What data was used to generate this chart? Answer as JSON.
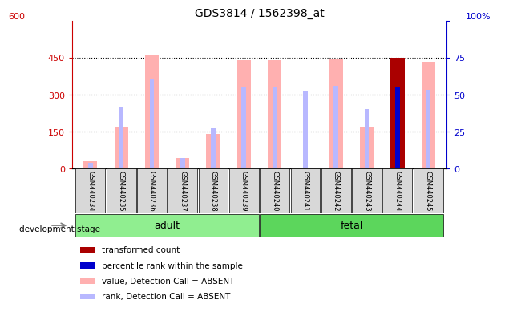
{
  "title": "GDS3814 / 1562398_at",
  "samples": [
    "GSM440234",
    "GSM440235",
    "GSM440236",
    "GSM440237",
    "GSM440238",
    "GSM440239",
    "GSM440240",
    "GSM440241",
    "GSM440242",
    "GSM440243",
    "GSM440244",
    "GSM440245"
  ],
  "pink_values": [
    30,
    170,
    460,
    42,
    140,
    438,
    440,
    0,
    442,
    170,
    0,
    432
  ],
  "pink_visible": [
    true,
    true,
    true,
    true,
    true,
    true,
    true,
    false,
    true,
    true,
    false,
    true
  ],
  "blue_rank_pct": [
    3.7,
    41,
    60,
    7,
    27.5,
    55,
    55,
    52.5,
    56,
    40,
    55,
    53
  ],
  "blue_rank_visible": [
    true,
    true,
    true,
    true,
    true,
    true,
    true,
    true,
    true,
    true,
    false,
    true
  ],
  "red_value": [
    0,
    0,
    0,
    0,
    0,
    0,
    0,
    0,
    0,
    0,
    450,
    0
  ],
  "red_visible": [
    false,
    false,
    false,
    false,
    false,
    false,
    false,
    false,
    false,
    false,
    true,
    false
  ],
  "dark_blue_pct": [
    0,
    0,
    0,
    0,
    0,
    0,
    0,
    0,
    0,
    0,
    55,
    0
  ],
  "dark_blue_visible": [
    false,
    false,
    false,
    false,
    false,
    false,
    false,
    false,
    false,
    false,
    true,
    false
  ],
  "adult_range": [
    0,
    5
  ],
  "fetal_range": [
    6,
    11
  ],
  "ylim_left": [
    0,
    600
  ],
  "ylim_right": [
    0,
    100
  ],
  "yticks_left": [
    0,
    150,
    300,
    450
  ],
  "ytick_600_label": "600",
  "yticks_right": [
    0,
    25,
    50,
    75,
    100
  ],
  "ytick_labels_right": [
    "0",
    "25",
    "50",
    "75",
    "100%"
  ],
  "left_axis_color": "#cc0000",
  "right_axis_color": "#0000cc",
  "pink_bar_color": "#ffb0b0",
  "blue_bar_color": "#b8b8ff",
  "red_bar_color": "#aa0000",
  "dark_blue_bar_color": "#0000cc",
  "sample_box_color": "#d8d8d8",
  "adult_green": "#90ee90",
  "fetal_green": "#5cd65c",
  "legend_items": [
    {
      "color": "#aa0000",
      "label": "transformed count"
    },
    {
      "color": "#0000cc",
      "label": "percentile rank within the sample"
    },
    {
      "color": "#ffb0b0",
      "label": "value, Detection Call = ABSENT"
    },
    {
      "color": "#b8b8ff",
      "label": "rank, Detection Call = ABSENT"
    }
  ],
  "development_stage_label": "development stage"
}
